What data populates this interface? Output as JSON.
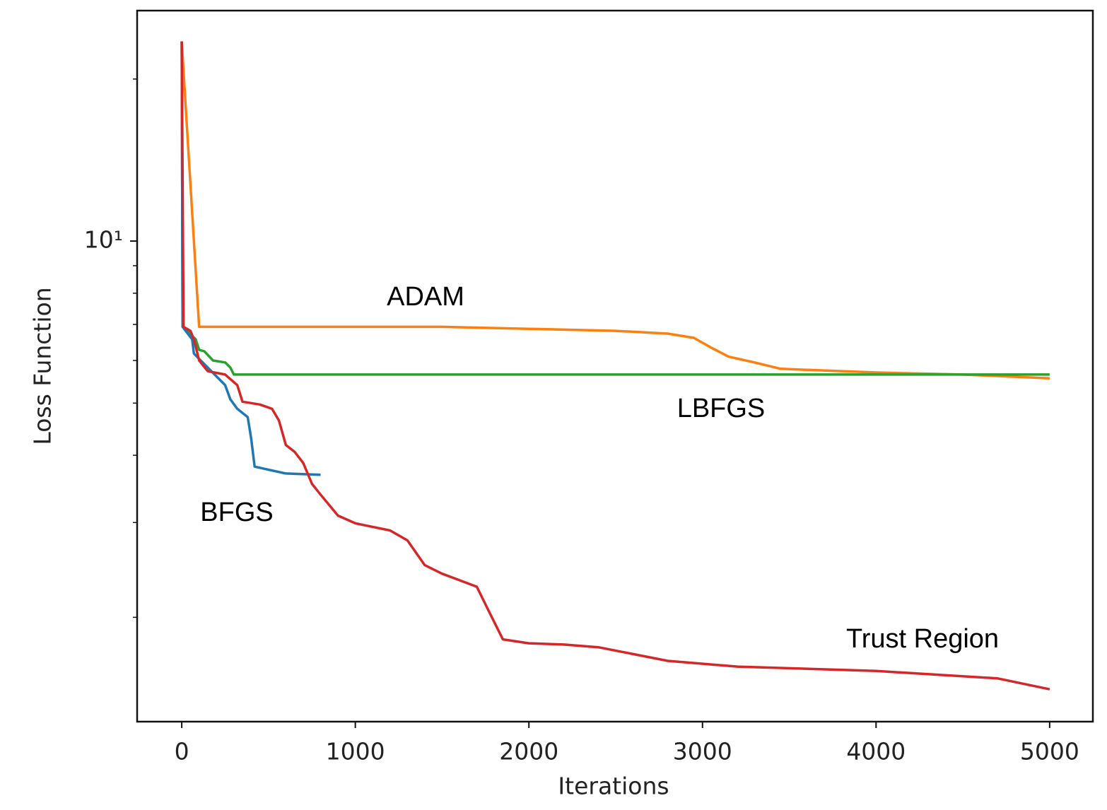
{
  "chart_data": {
    "type": "line",
    "xlabel": "Iterations",
    "ylabel": "Loss Function",
    "xlim": [
      -257,
      5249
    ],
    "ylim": [
      1.28,
      26.8
    ],
    "yscale": "log",
    "xticks": [
      0,
      1000,
      2000,
      3000,
      4000,
      5000
    ],
    "yticks": [
      {
        "value": 10,
        "label": "10¹"
      }
    ],
    "yminorticks": [
      2,
      3,
      4,
      5,
      6,
      7,
      8,
      9,
      20
    ],
    "series": [
      {
        "name": "ADAM",
        "color": "#ff7f0e",
        "x": [
          0,
          20,
          100,
          500,
          1500,
          2000,
          2500,
          2800,
          2950,
          3050,
          3150,
          3300,
          3450,
          4000,
          4500,
          5000
        ],
        "values": [
          23.5,
          18.4,
          6.93,
          6.93,
          6.93,
          6.87,
          6.81,
          6.73,
          6.61,
          6.34,
          6.1,
          5.95,
          5.79,
          5.7,
          5.65,
          5.56
        ]
      },
      {
        "name": "LBFGS",
        "color": "#2ca02c",
        "x": [
          0,
          5,
          80,
          100,
          130,
          180,
          250,
          280,
          300,
          5000
        ],
        "values": [
          23.5,
          6.93,
          6.57,
          6.28,
          6.24,
          6.0,
          5.95,
          5.82,
          5.65,
          5.65
        ]
      },
      {
        "name": "BFGS",
        "color": "#1f77b4",
        "x": [
          0,
          5,
          60,
          70,
          150,
          250,
          280,
          320,
          380,
          400,
          420,
          500,
          600,
          800
        ],
        "values": [
          23.5,
          6.93,
          6.57,
          6.18,
          5.82,
          5.4,
          5.08,
          4.88,
          4.71,
          4.3,
          3.81,
          3.76,
          3.7,
          3.68
        ]
      },
      {
        "name": "Trust Region",
        "color": "#d62728",
        "x": [
          0,
          10,
          50,
          70,
          100,
          150,
          250,
          320,
          350,
          450,
          520,
          560,
          600,
          650,
          700,
          750,
          800,
          900,
          1000,
          1200,
          1300,
          1400,
          1500,
          1700,
          1780,
          1850,
          2000,
          2200,
          2400,
          2800,
          3200,
          4000,
          4700,
          5000
        ],
        "values": [
          23.5,
          6.93,
          6.81,
          6.57,
          6.0,
          5.73,
          5.65,
          5.4,
          5.03,
          4.97,
          4.88,
          4.64,
          4.18,
          4.06,
          3.87,
          3.54,
          3.38,
          3.09,
          2.99,
          2.9,
          2.78,
          2.5,
          2.41,
          2.28,
          2.02,
          1.82,
          1.79,
          1.78,
          1.76,
          1.66,
          1.62,
          1.59,
          1.54,
          1.47
        ]
      }
    ]
  }
}
